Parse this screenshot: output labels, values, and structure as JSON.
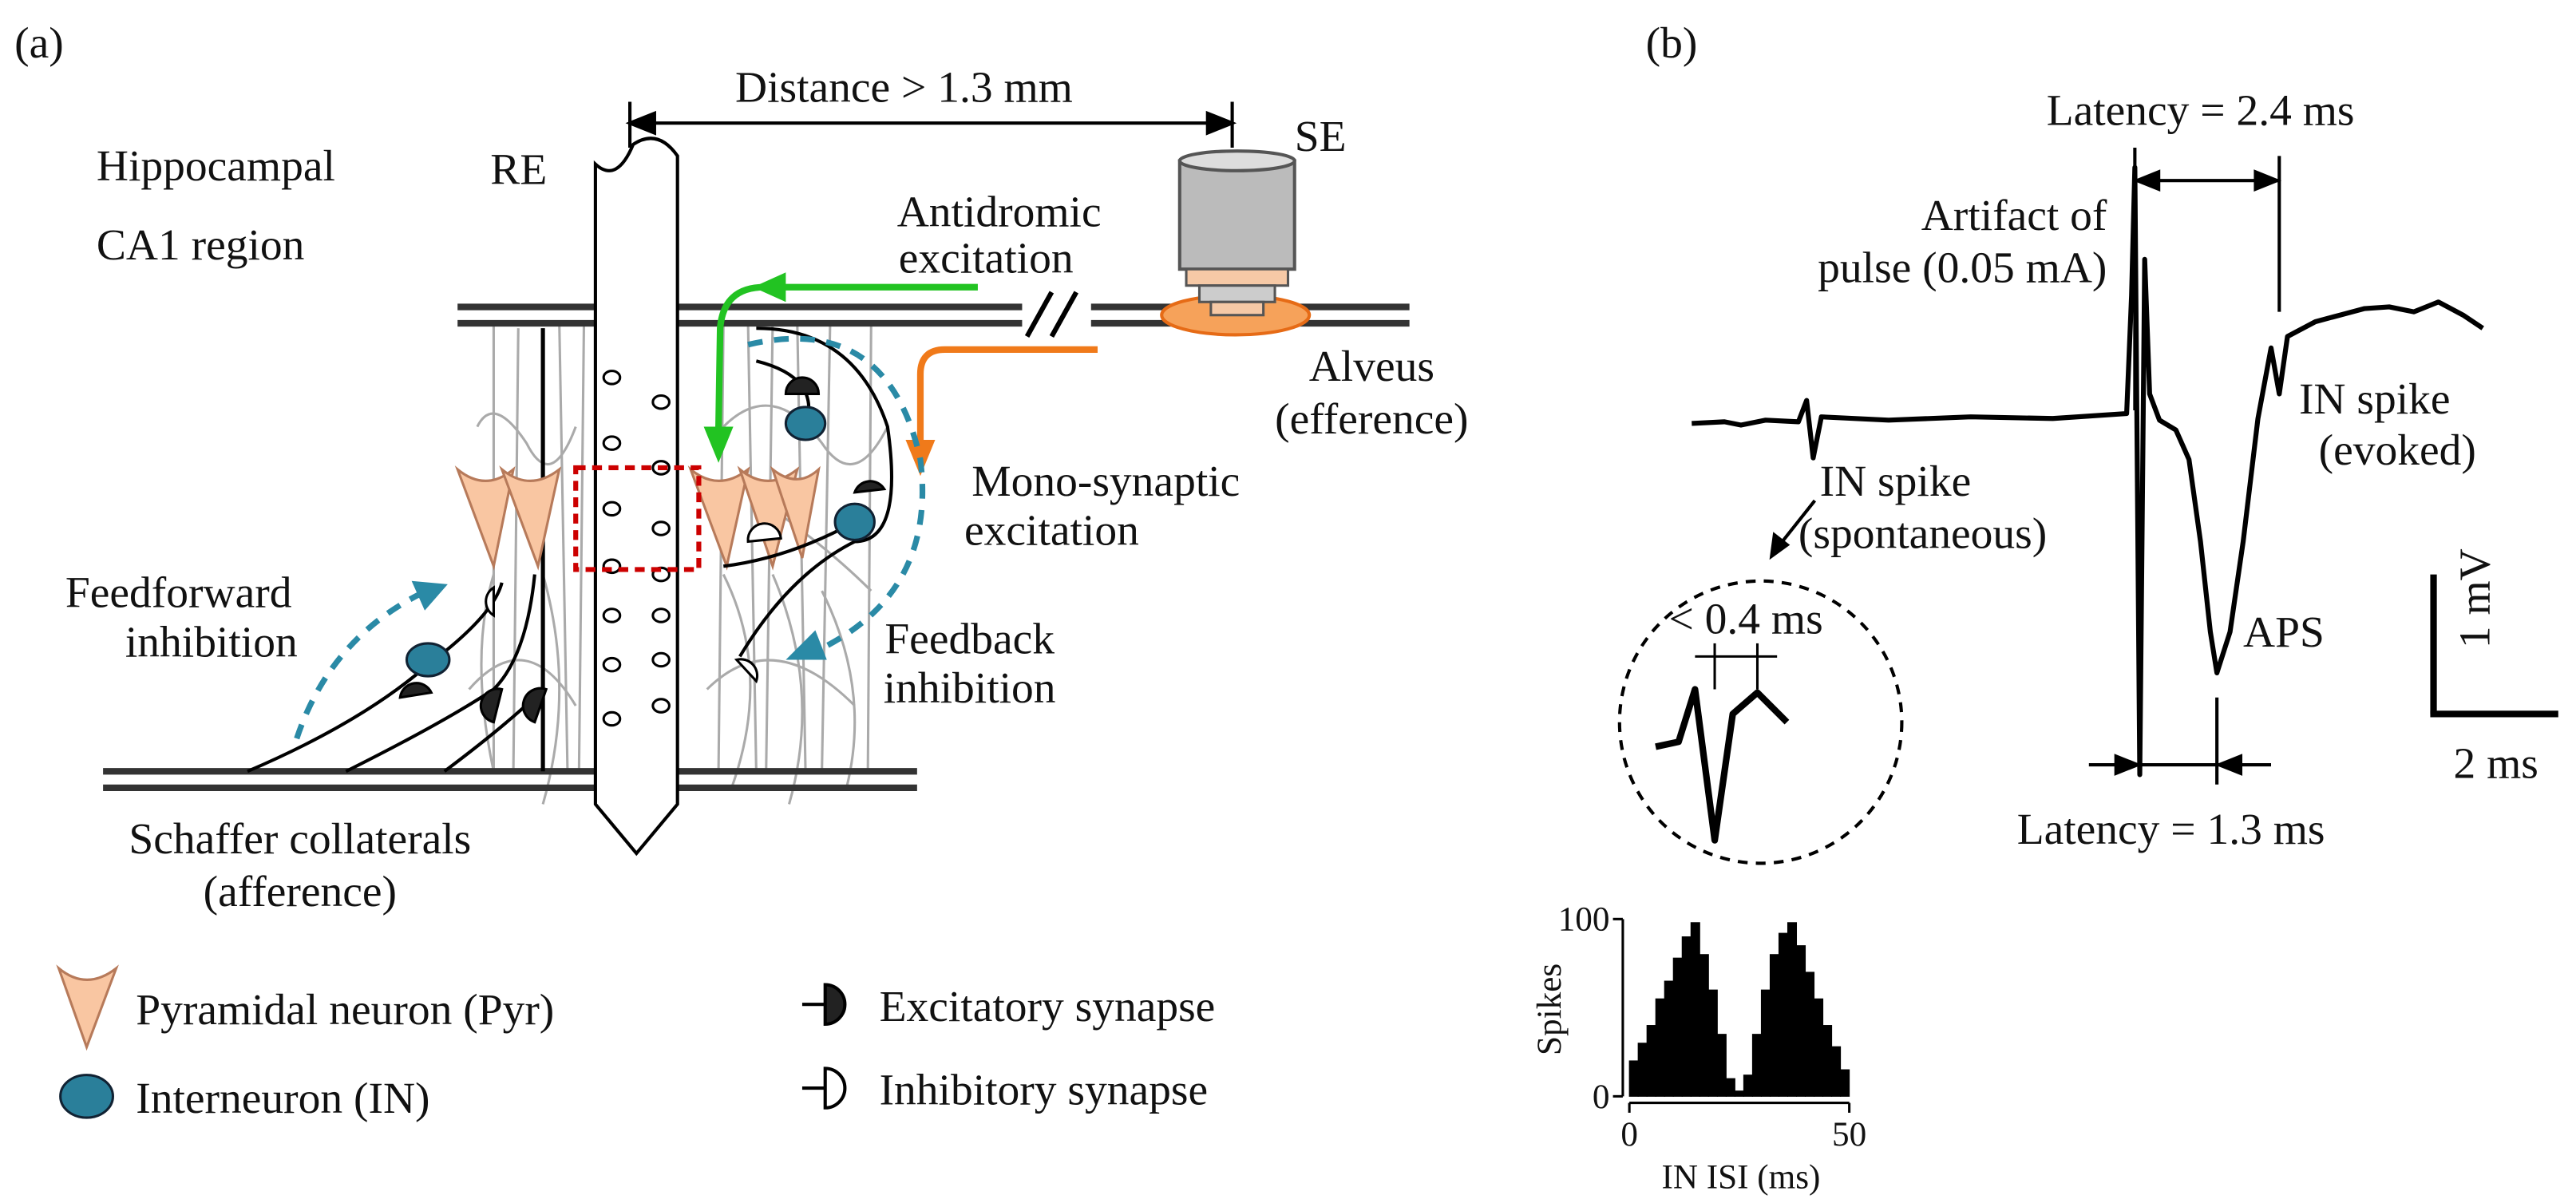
{
  "panel_a": {
    "label": "(a)",
    "distance": "Distance > 1.3 mm",
    "region": [
      "Hippocampal",
      "CA1 region"
    ],
    "recording_electrode": "RE",
    "stimulating_electrode": "SE",
    "antidromic": [
      "Antidromic",
      "excitation"
    ],
    "alveus": [
      "Alveus",
      "(efference)"
    ],
    "monosynaptic": [
      "Mono-synaptic",
      "excitation"
    ],
    "feedforward": [
      "Feedforward",
      "inhibition"
    ],
    "feedback": [
      "Feedback",
      "inhibition"
    ],
    "schaffer": [
      "Schaffer collaterals",
      "(afference)"
    ],
    "legend": [
      "Pyramidal neuron (Pyr)",
      "Interneuron (IN)",
      "Excitatory synapse",
      "Inhibitory synapse"
    ]
  },
  "panel_b": {
    "label": "(b)",
    "latency_top": "Latency = 2.4 ms",
    "artifact": [
      "Artifact of",
      "pulse (0.05 mA)"
    ],
    "evoked": [
      "IN spike",
      "(evoked)"
    ],
    "spontaneous": [
      "IN spike",
      "(spontaneous)"
    ],
    "spike_width": "< 0.4 ms",
    "aps": "APS",
    "scale_v": "1 mV",
    "scale_t": "2 ms",
    "latency_bottom": "Latency = 1.3 ms"
  },
  "chart_data": {
    "type": "histogram",
    "ylabel": "Spikes",
    "xlabel": "IN ISI (ms)",
    "bins": [
      0,
      2,
      4,
      6,
      8,
      10,
      12,
      14,
      16,
      18,
      20,
      22,
      24,
      26,
      28,
      30,
      32,
      34,
      36,
      38,
      40,
      42,
      44,
      46,
      48,
      50
    ],
    "counts": [
      20,
      30,
      40,
      55,
      65,
      78,
      90,
      98,
      80,
      60,
      35,
      10,
      3,
      12,
      35,
      60,
      80,
      92,
      98,
      85,
      70,
      55,
      40,
      28,
      15
    ],
    "color": "#000000",
    "xlim": [
      0,
      50
    ],
    "ylim": [
      0,
      100
    ],
    "xticks": [
      0,
      50
    ],
    "yticks": [
      0,
      100
    ]
  }
}
